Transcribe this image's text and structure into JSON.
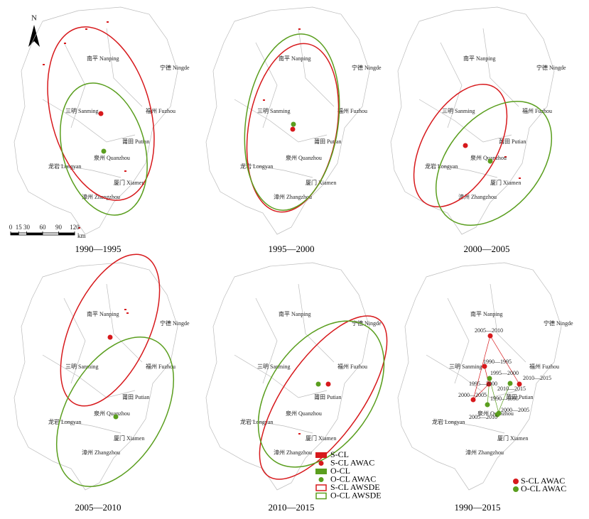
{
  "north": "N",
  "scale_bar": {
    "ticks": [
      0,
      15,
      30,
      60,
      90,
      120
    ],
    "unit": "km"
  },
  "cities": [
    "南平 Nanping",
    "宁德 Ningde",
    "三明 Sanming",
    "福州 Fuzhou",
    "莆田 Putian",
    "泉州 Quanzhou",
    "龙岩 Longyan",
    "厦门 Xiamen",
    "漳州 Zhangzhou"
  ],
  "panels": [
    {
      "caption": "1990—1995"
    },
    {
      "caption": "1995—2000"
    },
    {
      "caption": "2000—2005"
    },
    {
      "caption": "2005—2010"
    },
    {
      "caption": "2010—2015"
    },
    {
      "caption": "1990—2015"
    }
  ],
  "legend": [
    "S-CL",
    "S-CL AWAC",
    "O-CL",
    "O-CL AWAC",
    "S-CL AWSDE",
    "O-CL AWSDE"
  ],
  "summary_legend": [
    "S-CL AWAC",
    "O-CL AWAC"
  ],
  "trajectory_labels": {
    "s_cl": [
      "2005—2010",
      "1990—1995",
      "1995—2000",
      "2000—2005",
      "2010—2015"
    ],
    "o_cl": [
      "1995—2000",
      "2010—2015",
      "1990—1995",
      "2005—2010",
      "2000—2005"
    ]
  }
}
